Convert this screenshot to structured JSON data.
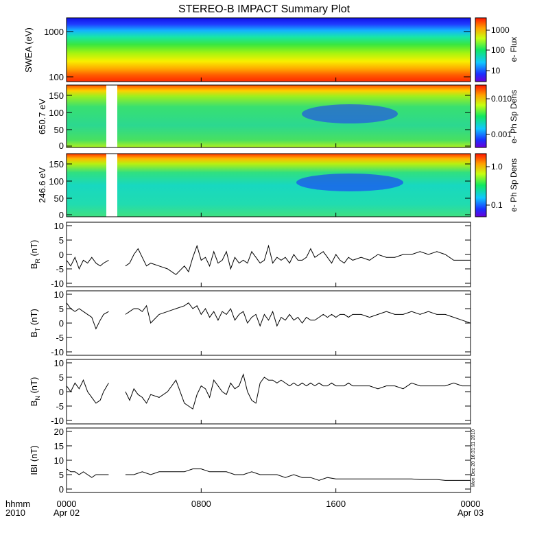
{
  "chart_data": [
    {
      "type": "heatmap",
      "title": "STEREO-B IMPACT Summary Plot",
      "ylabel": "SWEA (eV)",
      "yscale": "log",
      "ylim": [
        100,
        2000
      ],
      "yticks": [
        "1000",
        "100"
      ],
      "colorbar": {
        "label": "e- Flux",
        "scale": "log",
        "ticks": [
          "1000",
          "100",
          "10"
        ]
      },
      "data_gaps": []
    },
    {
      "type": "heatmap",
      "ylabel": "650.7 eV",
      "ylim": [
        0,
        180
      ],
      "yticks": [
        "150",
        "100",
        "50",
        "0"
      ],
      "colorbar": {
        "label": "e- Ph Sp Dens",
        "scale": "log",
        "ticks": [
          "0.010",
          "0.001"
        ]
      },
      "data_gaps": [
        [
          2.6,
          3.5
        ]
      ]
    },
    {
      "type": "heatmap",
      "ylabel": "246.6 eV",
      "ylim": [
        0,
        180
      ],
      "yticks": [
        "150",
        "100",
        "50",
        "0"
      ],
      "colorbar": {
        "label": "e- Ph Sp Dens",
        "scale": "log",
        "ticks": [
          "1.0",
          "0.1"
        ]
      },
      "data_gaps": [
        [
          2.6,
          3.5
        ]
      ]
    },
    {
      "type": "line",
      "ylabel_main": "B",
      "ylabel_sub": "R",
      "ylabel_unit": "(nT)",
      "ylim": [
        -10,
        10
      ],
      "yticks": [
        "10",
        "5",
        "0",
        "-5",
        "-10"
      ],
      "x": [
        0,
        0.25,
        0.5,
        0.75,
        1.0,
        1.25,
        1.5,
        1.75,
        2.0,
        2.2,
        2.5,
        3.5,
        3.75,
        4.0,
        4.25,
        4.5,
        4.75,
        5.0,
        5.5,
        6.0,
        6.5,
        7.0,
        7.25,
        7.5,
        7.75,
        8.0,
        8.25,
        8.5,
        8.75,
        9.0,
        9.25,
        9.5,
        9.75,
        10.0,
        10.25,
        10.5,
        10.75,
        11.0,
        11.25,
        11.5,
        11.75,
        12.0,
        12.25,
        12.5,
        12.75,
        13.0,
        13.25,
        13.5,
        13.75,
        14.0,
        14.25,
        14.5,
        14.75,
        15.0,
        15.25,
        15.5,
        15.75,
        16.0,
        16.25,
        16.5,
        16.75,
        17.0,
        17.5,
        18.0,
        18.5,
        19.0,
        19.5,
        20.0,
        20.5,
        21.0,
        21.5,
        22.0,
        22.5,
        23.0,
        23.5,
        24.0
      ],
      "y": [
        -2,
        -4,
        -1,
        -5,
        -2,
        -3,
        -1,
        -3,
        -4,
        -3,
        -2,
        -4,
        -3,
        0,
        2,
        -1,
        -4,
        -3,
        -4,
        -5,
        -7,
        -4,
        -6,
        -1,
        3,
        -2,
        -1,
        -4,
        1,
        -3,
        -2,
        1,
        -5,
        -1,
        -3,
        -2,
        -3,
        1,
        -1,
        -3,
        -2,
        3,
        -3,
        -1,
        -2,
        -1,
        -3,
        0,
        -2,
        -2,
        -1,
        2,
        -1,
        0,
        1,
        -1,
        -3,
        0,
        -2,
        -3,
        -1,
        -2,
        -1,
        -2,
        0,
        -1,
        -1,
        0,
        0,
        1,
        0,
        1,
        0,
        -2,
        -2,
        -2
      ]
    },
    {
      "type": "line",
      "ylabel_main": "B",
      "ylabel_sub": "T",
      "ylabel_unit": "(nT)",
      "ylim": [
        -10,
        10
      ],
      "yticks": [
        "10",
        "5",
        "0",
        "-5",
        "-10"
      ],
      "x": [
        0,
        0.25,
        0.5,
        0.75,
        1.0,
        1.25,
        1.5,
        1.75,
        2.0,
        2.2,
        2.5,
        3.5,
        3.75,
        4.0,
        4.25,
        4.5,
        4.75,
        5.0,
        5.5,
        6.0,
        6.5,
        7.0,
        7.25,
        7.5,
        7.75,
        8.0,
        8.25,
        8.5,
        8.75,
        9.0,
        9.25,
        9.5,
        9.75,
        10.0,
        10.25,
        10.5,
        10.75,
        11.0,
        11.25,
        11.5,
        11.75,
        12.0,
        12.25,
        12.5,
        12.75,
        13.0,
        13.25,
        13.5,
        13.75,
        14.0,
        14.25,
        14.5,
        14.75,
        15.0,
        15.25,
        15.5,
        15.75,
        16.0,
        16.25,
        16.5,
        16.75,
        17.0,
        17.5,
        18.0,
        18.5,
        19.0,
        19.5,
        20.0,
        20.5,
        21.0,
        21.5,
        22.0,
        22.5,
        23.0,
        23.5,
        24.0
      ],
      "y": [
        7,
        5,
        4,
        5,
        4,
        3,
        2,
        -2,
        1,
        3,
        4,
        3,
        4,
        5,
        5,
        4,
        6,
        0,
        3,
        4,
        5,
        6,
        7,
        5,
        6,
        3,
        5,
        2,
        4,
        1,
        4,
        3,
        5,
        1,
        3,
        4,
        0,
        2,
        3,
        -1,
        3,
        1,
        4,
        -1,
        2,
        1,
        3,
        1,
        2,
        0,
        2,
        1,
        1,
        2,
        3,
        2,
        3,
        2,
        3,
        3,
        2,
        3,
        3,
        2,
        3,
        4,
        3,
        3,
        4,
        3,
        4,
        3,
        3,
        2,
        1,
        0
      ]
    },
    {
      "type": "line",
      "ylabel_main": "B",
      "ylabel_sub": "N",
      "ylabel_unit": "(nT)",
      "ylim": [
        -10,
        10
      ],
      "yticks": [
        "10",
        "5",
        "0",
        "-5",
        "-10"
      ],
      "x": [
        0,
        0.25,
        0.5,
        0.75,
        1.0,
        1.25,
        1.5,
        1.75,
        2.0,
        2.2,
        2.5,
        3.5,
        3.75,
        4.0,
        4.25,
        4.5,
        4.75,
        5.0,
        5.5,
        6.0,
        6.5,
        7.0,
        7.25,
        7.5,
        7.75,
        8.0,
        8.25,
        8.5,
        8.75,
        9.0,
        9.25,
        9.5,
        9.75,
        10.0,
        10.25,
        10.5,
        10.75,
        11.0,
        11.25,
        11.5,
        11.75,
        12.0,
        12.25,
        12.5,
        12.75,
        13.0,
        13.25,
        13.5,
        13.75,
        14.0,
        14.25,
        14.5,
        14.75,
        15.0,
        15.25,
        15.5,
        15.75,
        16.0,
        16.25,
        16.5,
        16.75,
        17.0,
        17.5,
        18.0,
        18.5,
        19.0,
        19.5,
        20.0,
        20.5,
        21.0,
        21.5,
        22.0,
        22.5,
        23.0,
        23.5,
        24.0
      ],
      "y": [
        2,
        0,
        3,
        1,
        4,
        0,
        -2,
        -4,
        -3,
        0,
        3,
        0,
        -3,
        1,
        -1,
        -2,
        -4,
        -1,
        -2,
        0,
        4,
        -4,
        -5,
        -6,
        -1,
        2,
        1,
        -2,
        4,
        2,
        0,
        -1,
        3,
        1,
        2,
        6,
        0,
        -3,
        -4,
        3,
        5,
        4,
        4,
        3,
        4,
        3,
        2,
        3,
        2,
        3,
        2,
        3,
        2,
        3,
        2,
        2,
        3,
        2,
        2,
        2,
        3,
        2,
        2,
        2,
        1,
        2,
        2,
        1,
        3,
        2,
        2,
        2,
        2,
        3,
        2,
        2
      ]
    },
    {
      "type": "line",
      "ylabel_main": "IBI",
      "ylabel_unit": "(nT)",
      "ylim": [
        0,
        20
      ],
      "yticks": [
        "20",
        "15",
        "10",
        "5",
        "0"
      ],
      "x": [
        0,
        0.25,
        0.5,
        0.75,
        1.0,
        1.25,
        1.5,
        1.75,
        2.0,
        2.2,
        2.5,
        3.5,
        4.0,
        4.5,
        5.0,
        5.5,
        6.0,
        6.5,
        7.0,
        7.5,
        8.0,
        8.5,
        9.0,
        9.5,
        10.0,
        10.5,
        11.0,
        11.5,
        12.0,
        12.5,
        13.0,
        13.5,
        14.0,
        14.5,
        15.0,
        15.5,
        16.0,
        16.5,
        17.0,
        17.5,
        18.0,
        18.5,
        19.0,
        19.5,
        20.0,
        20.5,
        21.0,
        21.5,
        22.0,
        22.5,
        23.0,
        23.5,
        24.0
      ],
      "y": [
        7,
        6,
        6,
        5,
        6,
        5,
        4,
        5,
        5,
        5,
        5,
        5,
        5,
        6,
        5,
        6,
        6,
        6,
        6,
        7,
        7,
        6,
        6,
        6,
        5,
        5,
        6,
        5,
        5,
        5,
        4,
        5,
        4,
        4,
        3,
        4,
        3.5,
        3.5,
        3.5,
        3.5,
        3.5,
        3.5,
        3.5,
        3.5,
        3.5,
        3.5,
        3.3,
        3.3,
        3.3,
        3,
        3,
        3,
        3
      ]
    }
  ],
  "xaxis": {
    "ticks": [
      {
        "hour": 0,
        "line1": "0000",
        "line2": "Apr 02"
      },
      {
        "hour": 8,
        "line1": "0800",
        "line2": ""
      },
      {
        "hour": 16,
        "line1": "1600",
        "line2": ""
      },
      {
        "hour": 24,
        "line1": "0000",
        "line2": "Apr 03"
      }
    ],
    "label_line1": "hhmm",
    "label_line2": "2010"
  },
  "timestamp": "Mon Dec 20 16:31:11 2010"
}
